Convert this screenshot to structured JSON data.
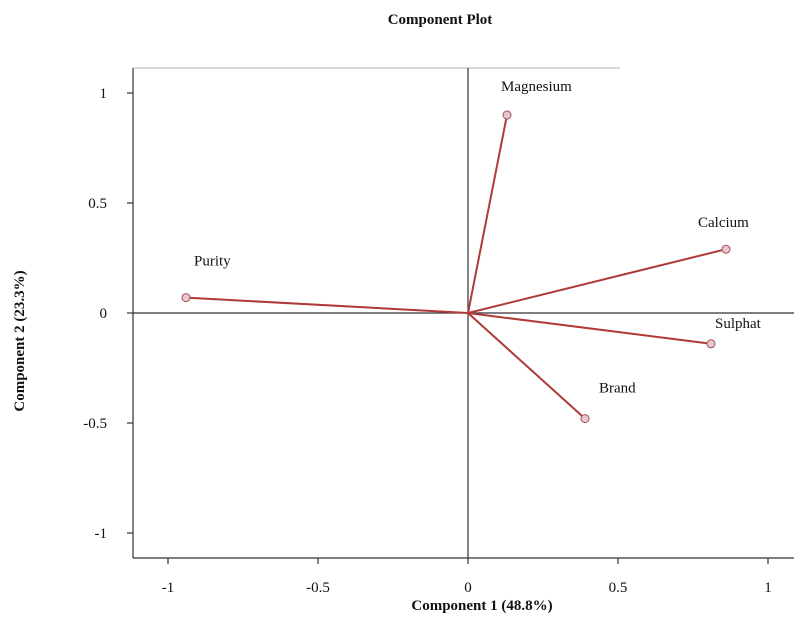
{
  "chart_data": {
    "type": "biplot",
    "title": "Component  Plot",
    "xlabel": "Component 1 (48.8%)",
    "ylabel": "Component 2 (23.3%)",
    "xlim": [
      -1.1,
      1.1
    ],
    "ylim": [
      -1.12,
      1.12
    ],
    "x_ticks": [
      -1,
      -0.5,
      0,
      0.5,
      1
    ],
    "x_tick_labels": [
      "-1",
      "-0.5",
      "0",
      "0.5",
      "1"
    ],
    "y_ticks": [
      1,
      0.5,
      0,
      -0.5,
      -1
    ],
    "y_tick_labels": [
      "1",
      "0.5",
      "0",
      "-0.5",
      "-1"
    ],
    "grid": false,
    "points": [
      {
        "label": "Magnesium",
        "x": 0.13,
        "y": 0.9
      },
      {
        "label": "Calcium",
        "x": 0.86,
        "y": 0.29
      },
      {
        "label": "Purity",
        "x": -0.94,
        "y": 0.07
      },
      {
        "label": "Sulphat",
        "x": 0.81,
        "y": -0.14
      },
      {
        "label": "Brand",
        "x": 0.39,
        "y": -0.48
      }
    ],
    "colors": {
      "vector": "#b03a3a",
      "marker_fill": "#e8c8cc",
      "marker_stroke": "#a05060",
      "axis": "#333333"
    }
  }
}
